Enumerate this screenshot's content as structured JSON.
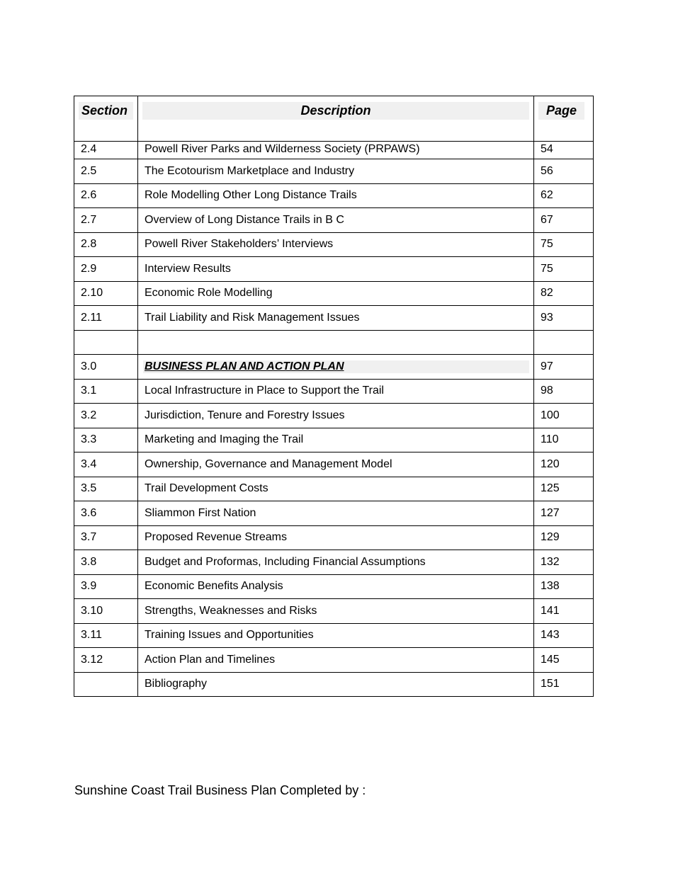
{
  "table": {
    "headers": {
      "section": "Section",
      "description": "Description",
      "page": "Page"
    },
    "rows": [
      {
        "section": "2.4",
        "description": "Powell River Parks and Wilderness Society (PRPAWS)",
        "page": "54"
      },
      {
        "section": "2.5",
        "description": "The Ecotourism  Marketplace and Industry",
        "page": "56"
      },
      {
        "section": "2.6",
        "description": "Role Modelling Other Long Distance Trails",
        "page": "62"
      },
      {
        "section": "2.7",
        "description": "Overview of Long Distance Trails in B C",
        "page": "67"
      },
      {
        "section": "2.8",
        "description": "Powell River Stakeholders’ Interviews",
        "page": "75"
      },
      {
        "section": "2.9",
        "description": "Interview Results",
        "page": "75"
      },
      {
        "section": "2.10",
        "description": "Economic Role Modelling",
        "page": "82"
      },
      {
        "section": "2.11",
        "description": "Trail Liability and Risk Management Issues",
        "page": "93"
      },
      {
        "section": "",
        "description": "",
        "page": ""
      },
      {
        "section": "3.0",
        "description": "BUSINESS PLAN AND ACTION PLAN",
        "page": "97",
        "heading": true
      },
      {
        "section": "3.1",
        "description": "Local Infrastructure in Place to Support the Trail",
        "page": "98"
      },
      {
        "section": "3.2",
        "description": "Jurisdiction, Tenure and Forestry Issues",
        "page": "100"
      },
      {
        "section": "3.3",
        "description": "Marketing and Imaging the Trail",
        "page": "110"
      },
      {
        "section": "3.4",
        "description": "Ownership, Governance and Management Model",
        "page": "120"
      },
      {
        "section": "3.5",
        "description": "Trail Development Costs",
        "page": "125"
      },
      {
        "section": "3.6",
        "description": "Sliammon First Nation",
        "page": "127"
      },
      {
        "section": "3.7",
        "description": "Proposed Revenue Streams",
        "page": "129"
      },
      {
        "section": "3.8",
        "description": "Budget and Proformas, Including Financial Assumptions",
        "page": "132"
      },
      {
        "section": "3.9",
        "description": "Economic Benefits Analysis",
        "page": "138"
      },
      {
        "section": "3.10",
        "description": "Strengths, Weaknesses and Risks",
        "page": "141"
      },
      {
        "section": "3.11",
        "description": "Training Issues and Opportunities",
        "page": "143"
      },
      {
        "section": "3.12",
        "description": "Action Plan and Timelines",
        "page": "145"
      },
      {
        "section": "",
        "description": "Bibliography",
        "page": "151"
      }
    ]
  },
  "footer": {
    "text": "Sunshine Coast Trail Business Plan Completed by :"
  }
}
